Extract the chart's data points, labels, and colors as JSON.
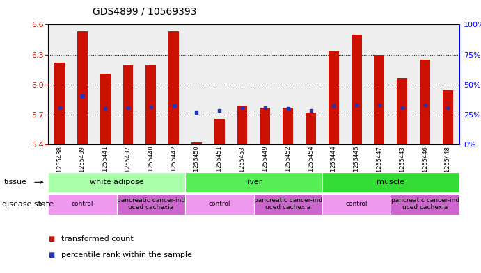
{
  "title": "GDS4899 / 10569393",
  "samples": [
    "GSM1255438",
    "GSM1255439",
    "GSM1255441",
    "GSM1255437",
    "GSM1255440",
    "GSM1255442",
    "GSM1255450",
    "GSM1255451",
    "GSM1255453",
    "GSM1255449",
    "GSM1255452",
    "GSM1255454",
    "GSM1255444",
    "GSM1255445",
    "GSM1255447",
    "GSM1255443",
    "GSM1255446",
    "GSM1255448"
  ],
  "bar_values": [
    6.22,
    6.53,
    6.11,
    6.19,
    6.19,
    6.53,
    5.42,
    5.66,
    5.79,
    5.77,
    5.77,
    5.72,
    6.33,
    6.5,
    6.3,
    6.06,
    6.25,
    5.94
  ],
  "blue_values": [
    5.77,
    5.89,
    5.76,
    5.77,
    5.78,
    5.79,
    5.72,
    5.74,
    5.77,
    5.77,
    5.76,
    5.74,
    5.79,
    5.8,
    5.8,
    5.77,
    5.8,
    5.77
  ],
  "ymin": 5.4,
  "ymax": 6.6,
  "yticks": [
    5.4,
    5.7,
    6.0,
    6.3,
    6.6
  ],
  "right_yticks": [
    0,
    25,
    50,
    75,
    100
  ],
  "bar_color": "#cc1100",
  "blue_color": "#2233bb",
  "bg_color": "#eeeeee",
  "tissue_groups": [
    {
      "label": "white adipose",
      "start": 0,
      "end": 6,
      "color": "#aaffaa"
    },
    {
      "label": "liver",
      "start": 6,
      "end": 12,
      "color": "#55ee55"
    },
    {
      "label": "muscle",
      "start": 12,
      "end": 18,
      "color": "#33dd33"
    }
  ],
  "disease_groups": [
    {
      "label": "control",
      "start": 0,
      "end": 3,
      "color": "#ee99ee"
    },
    {
      "label": "pancreatic cancer-ind\nuced cachexia",
      "start": 3,
      "end": 6,
      "color": "#cc66cc"
    },
    {
      "label": "control",
      "start": 6,
      "end": 9,
      "color": "#ee99ee"
    },
    {
      "label": "pancreatic cancer-ind\nuced cachexia",
      "start": 9,
      "end": 12,
      "color": "#cc66cc"
    },
    {
      "label": "control",
      "start": 12,
      "end": 15,
      "color": "#ee99ee"
    },
    {
      "label": "pancreatic cancer-ind\nuced cachexia",
      "start": 15,
      "end": 18,
      "color": "#cc66cc"
    }
  ],
  "legend_items": [
    {
      "color": "#cc1100",
      "label": "transformed count"
    },
    {
      "color": "#2233bb",
      "label": "percentile rank within the sample"
    }
  ]
}
